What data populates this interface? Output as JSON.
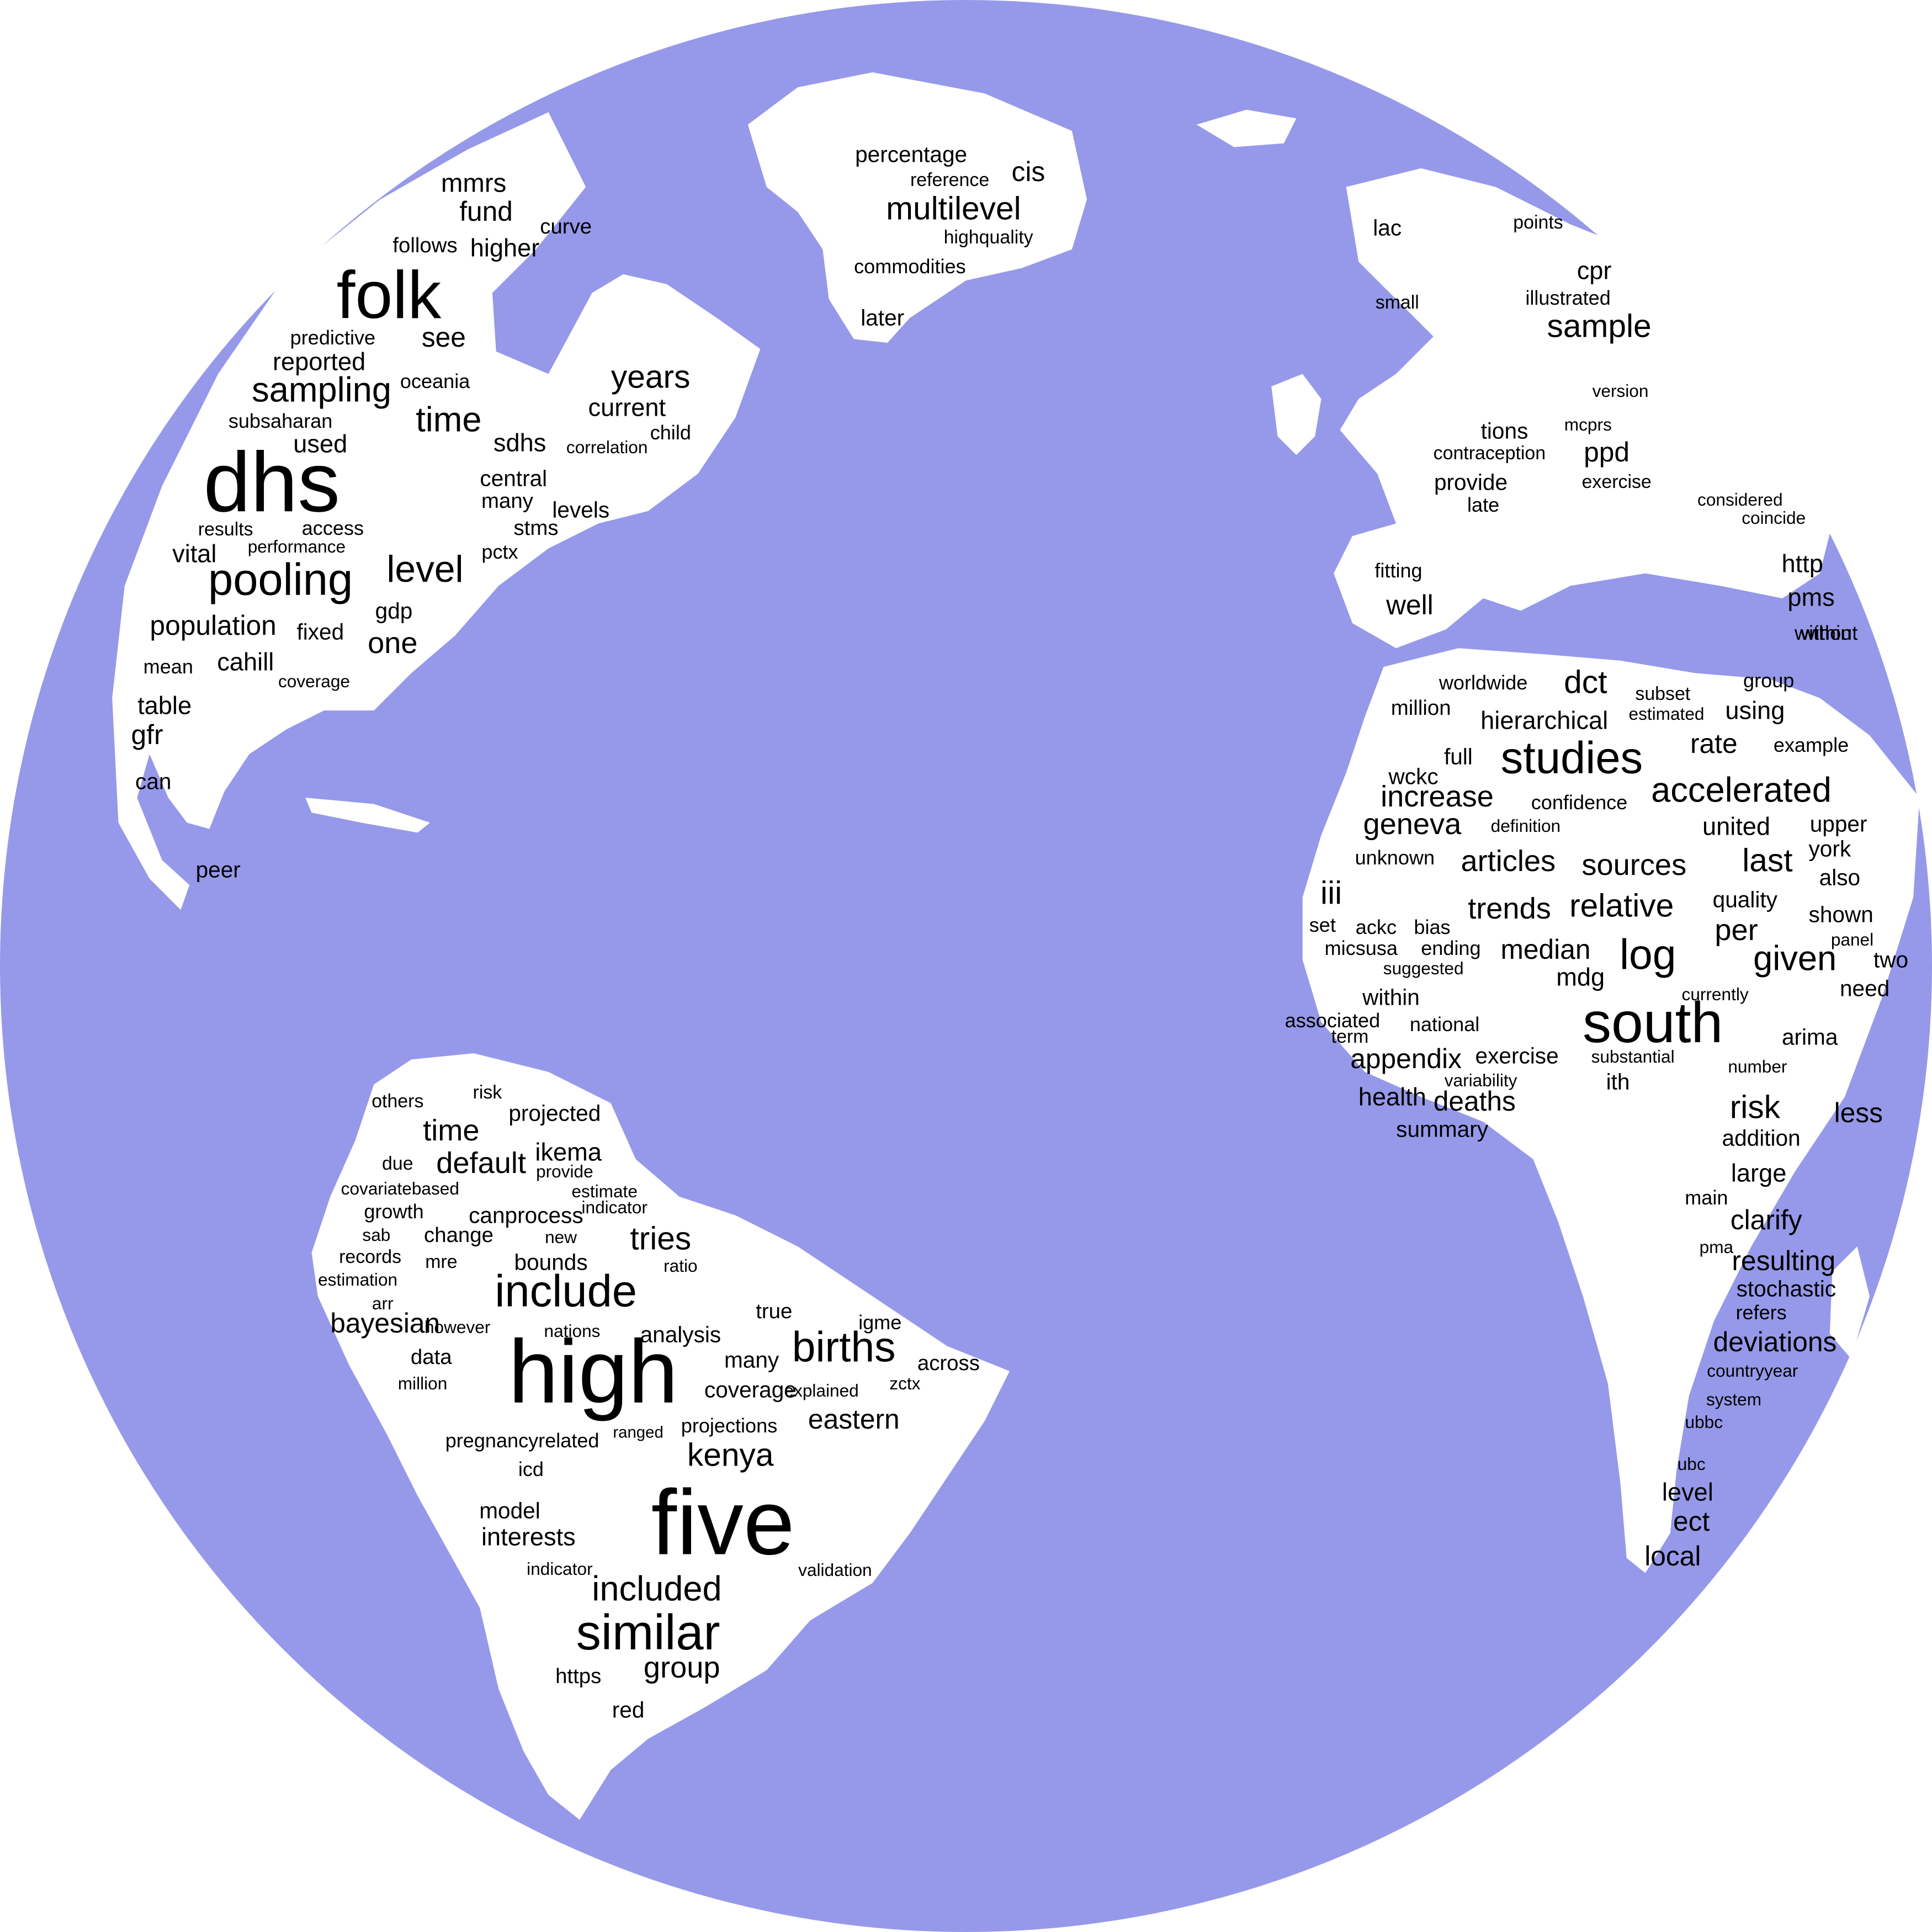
{
  "colors": {
    "ocean": "#9699e9",
    "land": "#ffffff",
    "background": "#ffffff",
    "text": "#000000"
  },
  "words": [
    "folk",
    "dhs",
    "pooling",
    "sampling",
    "time",
    "level",
    "mmrs",
    "fund",
    "follows",
    "higher",
    "curve",
    "predictive",
    "see",
    "reported",
    "oceania",
    "subsaharan",
    "used",
    "sdhs",
    "correlation",
    "results",
    "access",
    "performance",
    "vital",
    "central",
    "many",
    "stms",
    "pctx",
    "levels",
    "population",
    "fixed",
    "gdp",
    "one",
    "mean",
    "cahill",
    "coverage",
    "table",
    "gfr",
    "can",
    "peer",
    "years",
    "current",
    "child",
    "percentage",
    "reference",
    "cis",
    "multilevel",
    "highquality",
    "commodities",
    "later",
    "lac",
    "points",
    "cpr",
    "small",
    "illustrated",
    "sample",
    "tions",
    "mcprs",
    "version",
    "ppd",
    "contraception",
    "provide",
    "late",
    "exercise",
    "considered",
    "coincide",
    "http",
    "pms",
    "within",
    "fitting",
    "well",
    "worldwide",
    "dct",
    "subset",
    "group",
    "million",
    "estimated",
    "using",
    "hierarchical",
    "studies",
    "rate",
    "example",
    "full",
    "wckc",
    "accelerated",
    "increase",
    "confidence",
    "geneva",
    "definition",
    "united",
    "upper",
    "unknown",
    "articles",
    "sources",
    "last",
    "york",
    "also",
    "iii",
    "quality",
    "trends",
    "relative",
    "shown",
    "set",
    "ackc",
    "bias",
    "per",
    "panel",
    "micsusa",
    "ending",
    "median",
    "log",
    "given",
    "two",
    "suggested",
    "mdg",
    "within",
    "without",
    "currently",
    "need",
    "associated",
    "national",
    "south",
    "term",
    "arima",
    "exercise",
    "substantial",
    "number",
    "appendix",
    "variability",
    "ith",
    "health",
    "deaths",
    "risk",
    "less",
    "summary",
    "addition",
    "large",
    "main",
    "clarify",
    "pma",
    "resulting",
    "stochastic",
    "refers",
    "deviations",
    "countryyear",
    "system",
    "ubbc",
    "ubc",
    "level",
    "ect",
    "local",
    "others",
    "risk",
    "projected",
    "time",
    "ikema",
    "due",
    "default",
    "provide",
    "covariatebased",
    "estimate",
    "growth",
    "canprocess",
    "indicator",
    "sab",
    "change",
    "new",
    "tries",
    "records",
    "mre",
    "bounds",
    "ratio",
    "estimation",
    "include",
    "arr",
    "bayesian",
    "however",
    "nations",
    "analysis",
    "true",
    "igme",
    "births",
    "data",
    "high",
    "many",
    "across",
    "million",
    "explained",
    "zctx",
    "coverage",
    "ranged",
    "projections",
    "eastern",
    "pregnancyrelated",
    "kenya",
    "icd",
    "model",
    "five",
    "interests",
    "indicator",
    "validation",
    "included",
    "similar",
    "group",
    "https",
    "red"
  ]
}
